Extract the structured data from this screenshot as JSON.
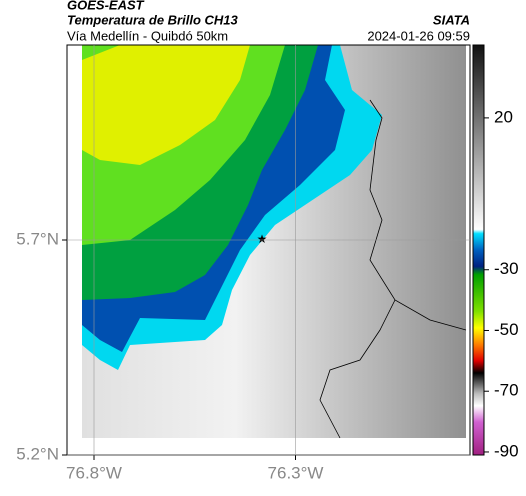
{
  "header": {
    "source": "GOES-EAST",
    "title": "Temperatura de Brillo CH13",
    "subtitle": "Vía Medellín - Quibdó 50km",
    "org": "SIATA",
    "datetime": "2024-01-26 09:59"
  },
  "map": {
    "xlim": [
      -76.867,
      -75.867
    ],
    "ylim": [
      5.2,
      6.1535
    ],
    "xticks": [
      {
        "value": -76.8,
        "label": "76.8°W"
      },
      {
        "value": -76.3,
        "label": "76.3°W"
      }
    ],
    "yticks": [
      {
        "value": 5.7,
        "label": "5.7°N"
      },
      {
        "value": 5.2,
        "label": "5.2°N"
      }
    ]
  },
  "colorbar": {
    "lim": [
      -91,
      44
    ],
    "ticks": [
      20,
      -30,
      -50,
      -70,
      -90
    ]
  }
}
